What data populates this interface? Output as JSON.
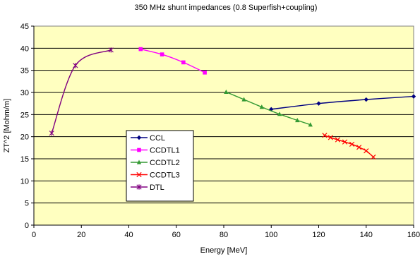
{
  "chart_data": {
    "type": "line",
    "title": "350 MHz shunt impedances (0.8 Superfish+coupling)",
    "xlabel": "Energy [MeV]",
    "ylabel": "ZT^2 [Mohm/m]",
    "xlim": [
      0,
      160
    ],
    "ylim": [
      0,
      45
    ],
    "xticks": [
      0,
      20,
      40,
      60,
      80,
      100,
      120,
      140,
      160
    ],
    "yticks": [
      0,
      5,
      10,
      15,
      20,
      25,
      30,
      35,
      40,
      45
    ],
    "grid": "horizontal",
    "plot_background": "#ffffc0",
    "legend_position": "center-left",
    "series": [
      {
        "name": "CCL",
        "color": "#000080",
        "marker": "diamond",
        "points": [
          [
            100,
            26.2
          ],
          [
            120,
            27.5
          ],
          [
            140,
            28.4
          ],
          [
            160,
            29.1
          ]
        ]
      },
      {
        "name": "CCDTL1",
        "color": "#ff00ff",
        "marker": "square",
        "points": [
          [
            45,
            39.8
          ],
          [
            54,
            38.6
          ],
          [
            63,
            36.8
          ],
          [
            72,
            34.5
          ]
        ]
      },
      {
        "name": "CCDTL2",
        "color": "#339933",
        "marker": "triangle",
        "points": [
          [
            81,
            30.1
          ],
          [
            88.5,
            28.4
          ],
          [
            96,
            26.7
          ],
          [
            103.5,
            25.1
          ],
          [
            111,
            23.7
          ],
          [
            116.5,
            22.7
          ]
        ]
      },
      {
        "name": "CCDTL3",
        "color": "#ff0000",
        "marker": "x",
        "points": [
          [
            122.5,
            20.3
          ],
          [
            125,
            19.8
          ],
          [
            128,
            19.3
          ],
          [
            131,
            18.8
          ],
          [
            134,
            18.3
          ],
          [
            137,
            17.6
          ],
          [
            140,
            16.8
          ],
          [
            143,
            15.4
          ]
        ]
      },
      {
        "name": "DTL",
        "color": "#800080",
        "marker": "star",
        "points": [
          [
            7.5,
            20.8
          ],
          [
            17.5,
            36.1
          ],
          [
            32.5,
            39.6
          ]
        ]
      }
    ]
  }
}
